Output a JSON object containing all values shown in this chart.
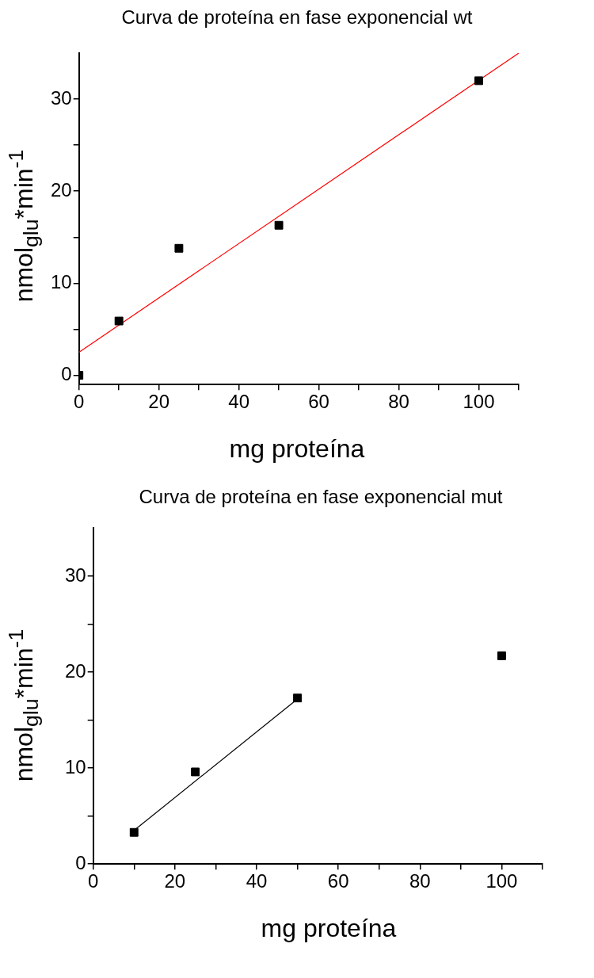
{
  "chart_data": [
    {
      "type": "scatter",
      "title": "Curva de proteína en fase exponencial wt",
      "xlabel": "mg proteína",
      "ylabel": "nmol$_{glu}$*min$^{-1}$",
      "xlim": [
        0,
        110
      ],
      "ylim": [
        -1,
        35
      ],
      "xticks": [
        0,
        {
          "value": 10,
          "label": null
        },
        20,
        {
          "value": 30,
          "label": null
        },
        40,
        {
          "value": 50,
          "label": null
        },
        60,
        {
          "value": 70,
          "label": null
        },
        80,
        {
          "value": 90,
          "label": null
        },
        100,
        {
          "value": 110,
          "label": null
        }
      ],
      "yticks": [
        0,
        {
          "value": 5,
          "label": null
        },
        10,
        {
          "value": 15,
          "label": null
        },
        20,
        {
          "value": 25,
          "label": null
        },
        30
      ],
      "marker": "square",
      "series": [
        {
          "color": "#000000",
          "x": [
            0,
            10,
            25,
            50,
            100
          ],
          "values": [
            0,
            5.9,
            13.8,
            16.3,
            32.0
          ]
        },
        {
          "type": "line",
          "color": "#ff0000",
          "marker": "none",
          "x": [
            0,
            110
          ],
          "values": [
            2.5,
            35
          ]
        }
      ]
    },
    {
      "type": "scatter",
      "title": "Curva de proteína en fase exponencial mut",
      "xlabel": "mg proteína",
      "ylabel": "nmol$_{glu}$*min$^{-1}$",
      "xlim": [
        0,
        110
      ],
      "ylim": [
        0,
        35
      ],
      "xticks": [
        0,
        {
          "value": 10,
          "label": null
        },
        20,
        {
          "value": 30,
          "label": null
        },
        40,
        {
          "value": 50,
          "label": null
        },
        60,
        {
          "value": 70,
          "label": null
        },
        80,
        {
          "value": 90,
          "label": null
        },
        100,
        {
          "value": 110,
          "label": null
        }
      ],
      "yticks": [
        0,
        {
          "value": 5,
          "label": null
        },
        10,
        {
          "value": 15,
          "label": null
        },
        20,
        {
          "value": 25,
          "label": null
        },
        30
      ],
      "marker": "square",
      "series": [
        {
          "color": "#000000",
          "x": [
            10,
            25,
            50,
            100
          ],
          "values": [
            3.3,
            9.6,
            17.3,
            21.7
          ]
        },
        {
          "type": "line",
          "color": "#000000",
          "marker": "none",
          "x": [
            10,
            50
          ],
          "values": [
            3.5,
            17.2
          ]
        }
      ]
    }
  ]
}
